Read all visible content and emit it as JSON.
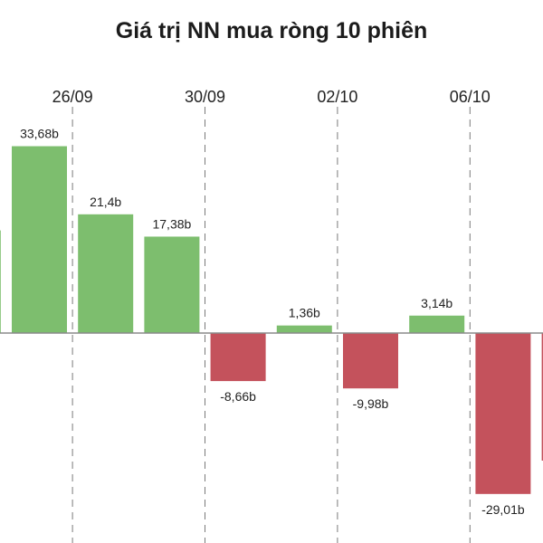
{
  "chart_data": {
    "type": "bar",
    "title": "Giá trị NN mua ròng 10 phiên",
    "categories": [
      "",
      "",
      "",
      "",
      "",
      "",
      "",
      "",
      "",
      ""
    ],
    "values": [
      18.5,
      33.68,
      21.4,
      17.38,
      -8.66,
      1.36,
      -9.98,
      3.14,
      -29.01,
      -23.0
    ],
    "value_labels": [
      "",
      "33,68b",
      "21,4b",
      "17,38b",
      "-8,66b",
      "1,36b",
      "-9,98b",
      "3,14b",
      "-29,01b",
      ""
    ],
    "date_ticks": [
      {
        "label": "26/09",
        "after_bar": 1
      },
      {
        "label": "30/09",
        "after_bar": 3
      },
      {
        "label": "02/10",
        "after_bar": 5
      },
      {
        "label": "06/10",
        "after_bar": 7
      }
    ],
    "ylim": [
      -33,
      35
    ],
    "grid": false,
    "legend": "none",
    "colors": {
      "positive": "#7dbe6e",
      "negative": "#c4525c",
      "axis": "#8a8a8a",
      "text": "#222222"
    }
  }
}
